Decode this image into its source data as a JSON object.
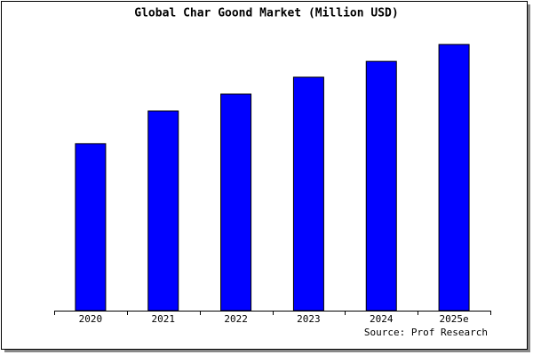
{
  "chart_data": {
    "type": "bar",
    "title": "Global Char Goond Market (Million USD)",
    "categories": [
      "2020",
      "2021",
      "2022",
      "2023",
      "2024",
      "2025e"
    ],
    "values": [
      62.3,
      74.5,
      80.8,
      87.1,
      93.0,
      99.3
    ],
    "color": "#0000ff",
    "ylim": [
      0,
      100
    ],
    "source": "Source: Prof Research"
  }
}
